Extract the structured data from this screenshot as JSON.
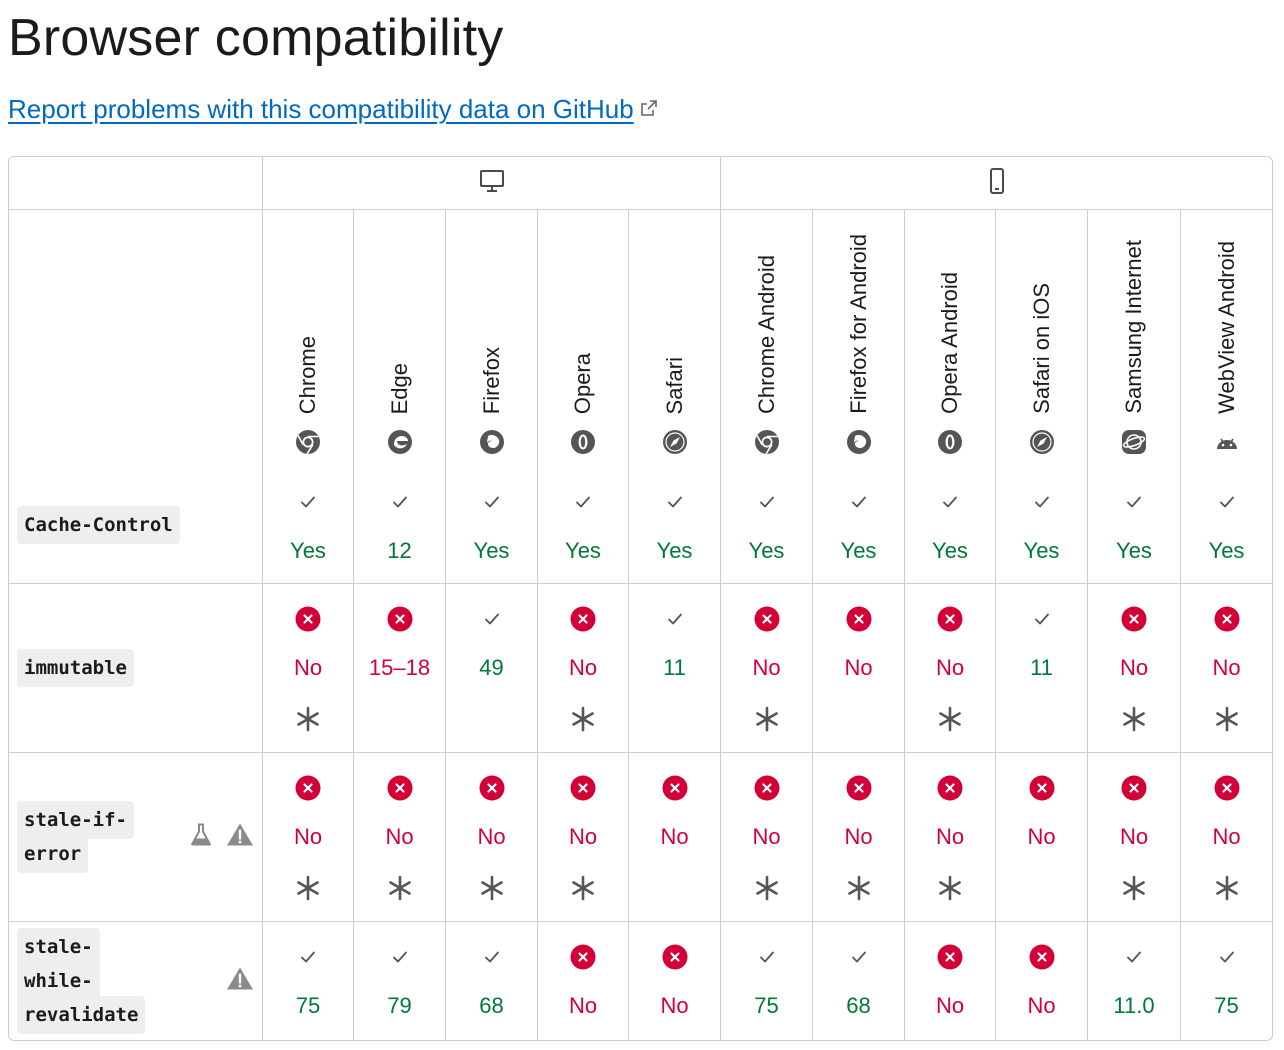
{
  "title": "Browser compatibility",
  "report_link": "Report problems with this compatibility data on GitHub",
  "colors": {
    "yes": "#007936",
    "no": "#d30038",
    "link": "#0069c2",
    "border": "#cdcdcd"
  },
  "groups": [
    {
      "name": "desktop",
      "icon": "desktop-icon",
      "span": 5
    },
    {
      "name": "mobile",
      "icon": "mobile-icon",
      "span": 6
    }
  ],
  "browsers": [
    {
      "label": "Chrome",
      "icon": "chrome-icon"
    },
    {
      "label": "Edge",
      "icon": "edge-icon"
    },
    {
      "label": "Firefox",
      "icon": "firefox-icon"
    },
    {
      "label": "Opera",
      "icon": "opera-icon"
    },
    {
      "label": "Safari",
      "icon": "safari-icon"
    },
    {
      "label": "Chrome Android",
      "icon": "chrome-icon"
    },
    {
      "label": "Firefox for Android",
      "icon": "firefox-icon"
    },
    {
      "label": "Opera Android",
      "icon": "opera-icon"
    },
    {
      "label": "Safari on iOS",
      "icon": "safari-icon"
    },
    {
      "label": "Samsung Internet",
      "icon": "samsung-internet-icon"
    },
    {
      "label": "WebView Android",
      "icon": "android-icon"
    }
  ],
  "features": [
    {
      "name": "Cache-Control",
      "flags": [],
      "support": [
        {
          "status": "yes",
          "text": "Yes",
          "note": false
        },
        {
          "status": "yes",
          "text": "12",
          "note": false
        },
        {
          "status": "yes",
          "text": "Yes",
          "note": false
        },
        {
          "status": "yes",
          "text": "Yes",
          "note": false
        },
        {
          "status": "yes",
          "text": "Yes",
          "note": false
        },
        {
          "status": "yes",
          "text": "Yes",
          "note": false
        },
        {
          "status": "yes",
          "text": "Yes",
          "note": false
        },
        {
          "status": "yes",
          "text": "Yes",
          "note": false
        },
        {
          "status": "yes",
          "text": "Yes",
          "note": false
        },
        {
          "status": "yes",
          "text": "Yes",
          "note": false
        },
        {
          "status": "yes",
          "text": "Yes",
          "note": false
        }
      ]
    },
    {
      "name": "immutable",
      "flags": [],
      "support": [
        {
          "status": "no",
          "text": "No",
          "note": true
        },
        {
          "status": "no",
          "text": "15–18",
          "note": false
        },
        {
          "status": "yes",
          "text": "49",
          "note": false
        },
        {
          "status": "no",
          "text": "No",
          "note": true
        },
        {
          "status": "yes",
          "text": "11",
          "note": false
        },
        {
          "status": "no",
          "text": "No",
          "note": true
        },
        {
          "status": "no",
          "text": "No",
          "note": false
        },
        {
          "status": "no",
          "text": "No",
          "note": true
        },
        {
          "status": "yes",
          "text": "11",
          "note": false
        },
        {
          "status": "no",
          "text": "No",
          "note": true
        },
        {
          "status": "no",
          "text": "No",
          "note": true
        }
      ]
    },
    {
      "name": "stale-if-error",
      "flags": [
        "experimental-icon",
        "warning-icon"
      ],
      "support": [
        {
          "status": "no",
          "text": "No",
          "note": true
        },
        {
          "status": "no",
          "text": "No",
          "note": true
        },
        {
          "status": "no",
          "text": "No",
          "note": true
        },
        {
          "status": "no",
          "text": "No",
          "note": true
        },
        {
          "status": "no",
          "text": "No",
          "note": false
        },
        {
          "status": "no",
          "text": "No",
          "note": true
        },
        {
          "status": "no",
          "text": "No",
          "note": true
        },
        {
          "status": "no",
          "text": "No",
          "note": true
        },
        {
          "status": "no",
          "text": "No",
          "note": false
        },
        {
          "status": "no",
          "text": "No",
          "note": true
        },
        {
          "status": "no",
          "text": "No",
          "note": true
        }
      ]
    },
    {
      "name": "stale-while-revalidate",
      "flags": [
        "warning-icon"
      ],
      "support": [
        {
          "status": "yes",
          "text": "75",
          "note": false
        },
        {
          "status": "yes",
          "text": "79",
          "note": false
        },
        {
          "status": "yes",
          "text": "68",
          "note": false
        },
        {
          "status": "no",
          "text": "No",
          "note": false
        },
        {
          "status": "no",
          "text": "No",
          "note": false
        },
        {
          "status": "yes",
          "text": "75",
          "note": false
        },
        {
          "status": "yes",
          "text": "68",
          "note": false
        },
        {
          "status": "no",
          "text": "No",
          "note": false
        },
        {
          "status": "no",
          "text": "No",
          "note": false
        },
        {
          "status": "yes",
          "text": "11.0",
          "note": false
        },
        {
          "status": "yes",
          "text": "75",
          "note": false
        }
      ]
    }
  ]
}
